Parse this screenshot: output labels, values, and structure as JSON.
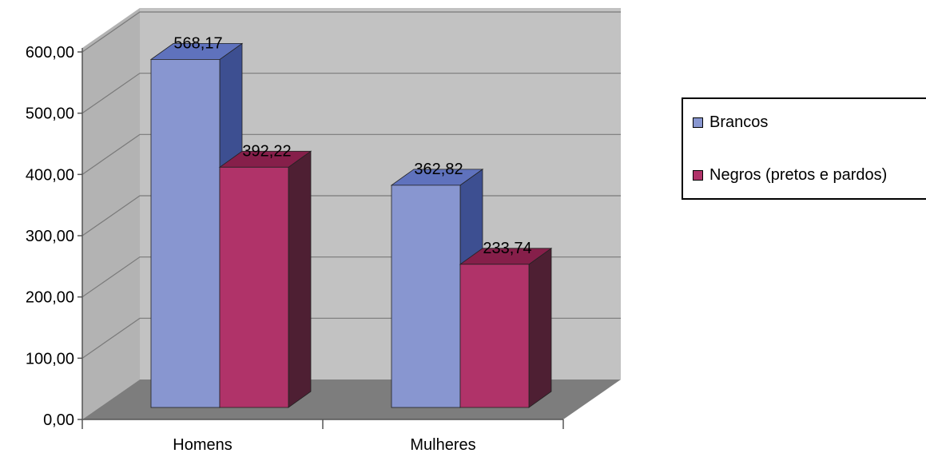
{
  "chart_data": {
    "type": "bar",
    "categories": [
      "Homens",
      "Mulheres"
    ],
    "series": [
      {
        "name": "Brancos",
        "values": [
          568.17,
          362.82
        ],
        "labels": [
          "568,17",
          "362,82"
        ],
        "color": "#8896d0",
        "side_color": "#3d4f91",
        "top_color": "#5f72bd"
      },
      {
        "name": "Negros (pretos e pardos)",
        "values": [
          392.22,
          233.74
        ],
        "labels": [
          "392,22",
          "233,74"
        ],
        "color": "#b03369",
        "side_color": "#4e1f33",
        "top_color": "#861f4a"
      }
    ],
    "yticks": [
      "0,00",
      "100,00",
      "200,00",
      "300,00",
      "400,00",
      "500,00",
      "600,00"
    ],
    "ylim": [
      0,
      600
    ],
    "grid": true,
    "legend_position": "right",
    "style": "3d-column",
    "wall_color": "#c2c2c2",
    "floor_color": "#7d7d7d"
  }
}
